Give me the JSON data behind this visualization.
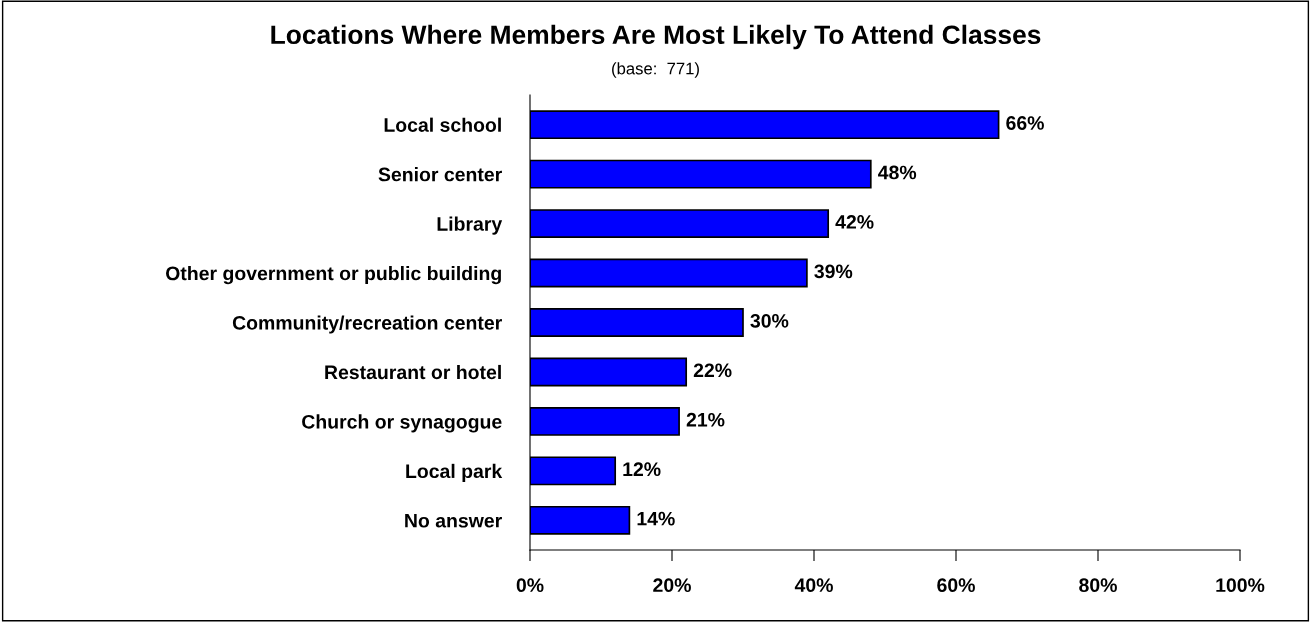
{
  "chart_data": {
    "type": "bar",
    "orientation": "horizontal",
    "title": "Locations Where Members Are Most Likely To Attend Classes",
    "annotations": [
      "(base:  771)"
    ],
    "categories": [
      "Local school",
      "Senior center",
      "Library",
      "Other government or public building",
      "Community/recreation center",
      "Restaurant or hotel",
      "Church or synagogue",
      "Local park",
      "No answer"
    ],
    "values": [
      66,
      48,
      42,
      39,
      30,
      22,
      21,
      12,
      14
    ],
    "value_labels": [
      "66%",
      "48%",
      "42%",
      "39%",
      "30%",
      "22%",
      "21%",
      "12%",
      "14%"
    ],
    "color": "#0000ff",
    "xlim": [
      0,
      100
    ],
    "xticks": [
      {
        "value": 0,
        "label": "0%"
      },
      {
        "value": 20,
        "label": "20%"
      },
      {
        "value": 40,
        "label": "40%"
      },
      {
        "value": 60,
        "label": "60%"
      },
      {
        "value": 80,
        "label": "80%"
      },
      {
        "value": 100,
        "label": "100%"
      }
    ],
    "grid": false,
    "legend": false
  }
}
